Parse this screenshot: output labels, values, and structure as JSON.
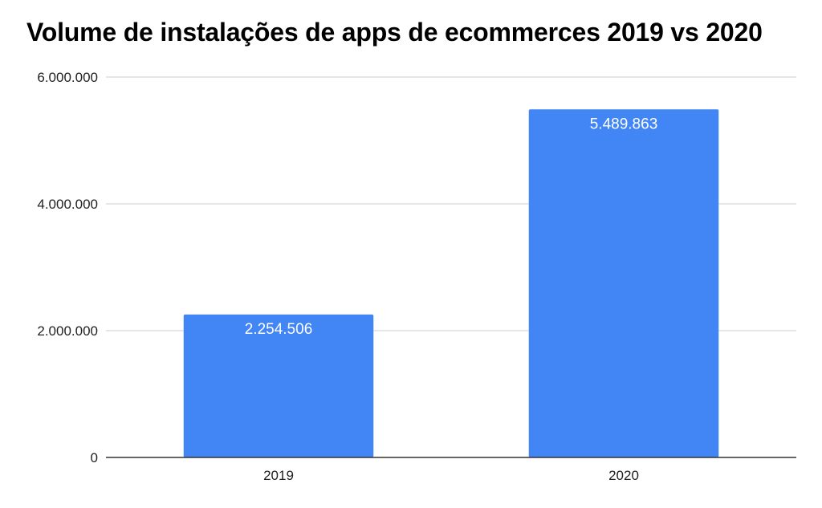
{
  "chart_data": {
    "type": "bar",
    "title": "Volume de instalações de apps de ecommerces 2019 vs 2020",
    "categories": [
      "2019",
      "2020"
    ],
    "values": [
      2254506,
      5489863
    ],
    "data_labels": [
      "2.254.506",
      "5.489.863"
    ],
    "y_ticks": [
      0,
      2000000,
      4000000,
      6000000
    ],
    "y_tick_labels": [
      "0",
      "2.000.000",
      "4.000.000",
      "6.000.000"
    ],
    "ylim": [
      0,
      6000000
    ],
    "xlabel": "",
    "ylabel": "",
    "grid": true,
    "legend": "none",
    "bar_color": "#4285F4",
    "grid_color": "#CCCCCC",
    "axis_color": "#333333"
  }
}
